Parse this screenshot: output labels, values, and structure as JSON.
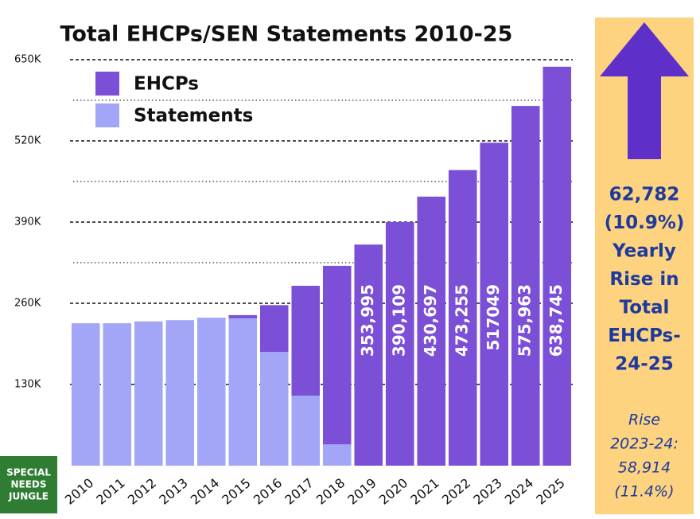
{
  "chart_data": {
    "type": "stacked-bar",
    "title": "Total EHCPs/SEN Statements 2010-25",
    "categories": [
      "2010",
      "2011",
      "2012",
      "2013",
      "2014",
      "2015",
      "2016",
      "2017",
      "2018",
      "2019",
      "2020",
      "2021",
      "2022",
      "2023",
      "2024",
      "2025"
    ],
    "series": [
      {
        "name": "EHCPs",
        "color": "#7b4fd6",
        "values": [
          0,
          0,
          0,
          0,
          0,
          5000,
          75000,
          176000,
          286000,
          353995,
          390109,
          430697,
          473255,
          517049,
          575963,
          638745
        ],
        "value_labels": [
          null,
          null,
          null,
          null,
          null,
          null,
          null,
          null,
          null,
          "353,995",
          "390,109",
          "430,697",
          "473,255",
          "517049",
          "575,963",
          "638,745"
        ]
      },
      {
        "name": "Statements",
        "color": "#a3a5f7",
        "values": [
          228000,
          228000,
          231000,
          233000,
          237000,
          236000,
          182000,
          112000,
          34000,
          0,
          0,
          0,
          0,
          0,
          0,
          0
        ]
      }
    ],
    "ylim": [
      0,
      650000
    ],
    "yticks": [
      {
        "value": 130000,
        "label": "130K"
      },
      {
        "value": 260000,
        "label": "260K"
      },
      {
        "value": 390000,
        "label": "390K"
      },
      {
        "value": 520000,
        "label": "520K"
      },
      {
        "value": 650000,
        "label": "650K"
      }
    ],
    "grid": true,
    "legend": "top-left",
    "panel": {
      "headline": [
        "62,782",
        "(10.9%)",
        "Yearly",
        "Rise in",
        "Total",
        "EHCPs-",
        "24-25"
      ],
      "note": [
        "Rise",
        "2023-24:",
        "58,914",
        "(11.4%)"
      ]
    },
    "logo": [
      "SPECIAL",
      "NEEDS",
      "JUNGLE"
    ]
  }
}
